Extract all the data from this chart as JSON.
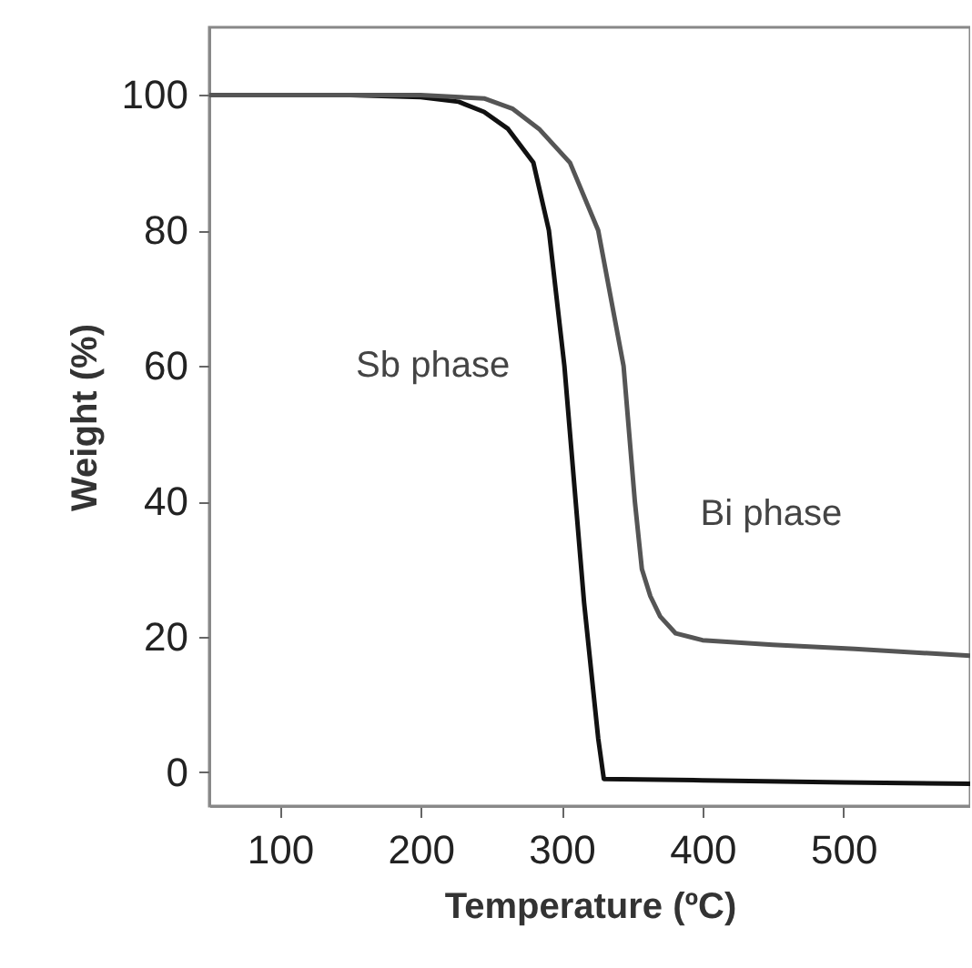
{
  "chart_data": {
    "type": "line",
    "xlabel": "Temperature (ºC)",
    "ylabel": "Weight (%)",
    "xlim": [
      50,
      590
    ],
    "xticks": [
      100,
      200,
      300,
      400,
      500
    ],
    "ylim": [
      -5,
      110
    ],
    "yticks": [
      0,
      20,
      40,
      60,
      80,
      100
    ],
    "marker": "none",
    "line_style": "solid",
    "series": [
      {
        "name": "Sb phase",
        "color": "#111111",
        "x": [
          50,
          150,
          200,
          227,
          245,
          262,
          280,
          291,
          302,
          310,
          316,
          321,
          326,
          330,
          400,
          500,
          590
        ],
        "values": [
          100,
          100,
          99.7,
          99,
          97.5,
          95,
          90,
          80,
          60,
          40,
          25,
          15,
          5,
          -1,
          -1.2,
          -1.5,
          -1.7
        ]
      },
      {
        "name": "Bi phase",
        "color": "#555555",
        "x": [
          50,
          200,
          245,
          265,
          284,
          306,
          326,
          344,
          352,
          357,
          363,
          370,
          381,
          400,
          450,
          508,
          590
        ],
        "values": [
          100,
          100,
          99.5,
          98,
          95,
          90,
          80,
          60,
          40,
          30,
          26,
          23,
          20.5,
          19.5,
          18.8,
          18.2,
          17.2
        ]
      }
    ]
  }
}
